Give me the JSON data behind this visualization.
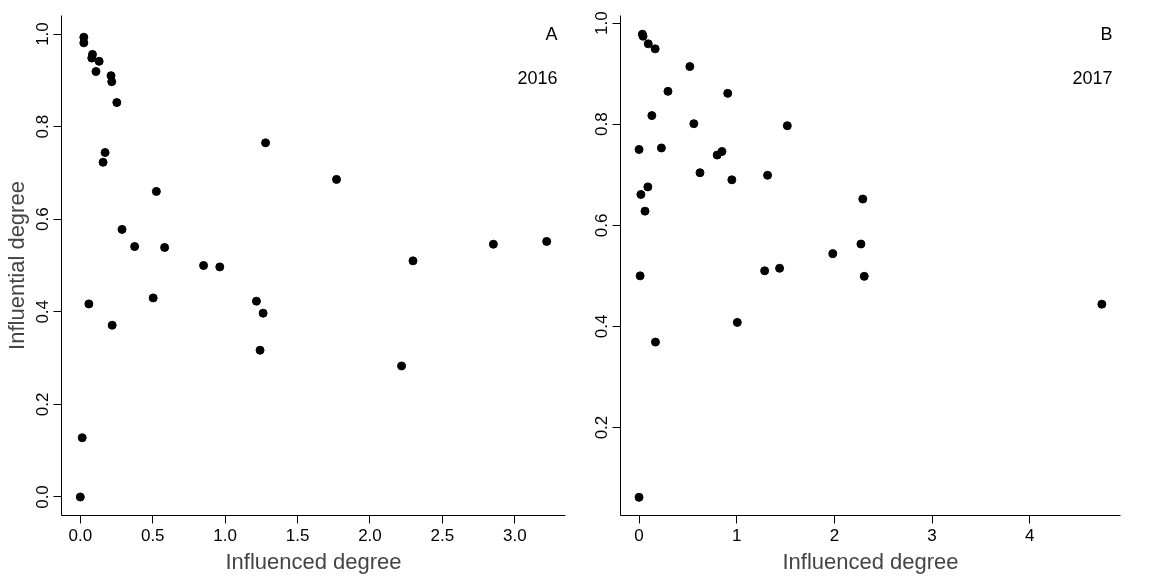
{
  "chart_data": [
    {
      "type": "scatter",
      "xlabel": "Influenced degree",
      "ylabel": "Influential degree",
      "annotations": [
        "A",
        "2016"
      ],
      "marker": "circle",
      "grid": false,
      "xlim": [
        -0.13,
        3.35
      ],
      "ylim": [
        -0.04,
        1.04
      ],
      "xticks": [
        {
          "value": 0,
          "label": "0.0"
        },
        {
          "value": 0.5,
          "label": "0.5"
        },
        {
          "value": 1,
          "label": "1.0"
        },
        {
          "value": 1.5,
          "label": "1.5"
        },
        {
          "value": 2,
          "label": "2.0"
        },
        {
          "value": 2.5,
          "label": "2.5"
        },
        {
          "value": 3,
          "label": "3.0"
        }
      ],
      "yticks": [
        {
          "value": 0,
          "label": "0.0"
        },
        {
          "value": 0.2,
          "label": "0.2"
        },
        {
          "value": 0.4,
          "label": "0.4"
        },
        {
          "value": 0.6,
          "label": "0.6"
        },
        {
          "value": 0.8,
          "label": "0.8"
        },
        {
          "value": 1,
          "label": "1.0"
        }
      ],
      "series": [
        {
          "color": "#000000",
          "x": [
            0.024,
            0.024,
            0.084,
            0.079,
            0.13,
            0.108,
            0.212,
            0.217,
            0.252,
            0.171,
            0.157,
            1.279,
            1.769,
            0.525,
            0.288,
            0.375,
            0.582,
            0.851,
            0.963,
            2.852,
            3.22,
            2.297,
            0.503,
            0.059,
            1.216,
            1.262,
            0.22,
            1.241,
            2.218,
            0.013,
            0.0
          ],
          "values": [
            0.993,
            0.981,
            0.956,
            0.948,
            0.941,
            0.919,
            0.91,
            0.897,
            0.852,
            0.744,
            0.723,
            0.765,
            0.686,
            0.66,
            0.578,
            0.541,
            0.539,
            0.5,
            0.497,
            0.546,
            0.552,
            0.51,
            0.43,
            0.417,
            0.423,
            0.397,
            0.371,
            0.317,
            0.283,
            0.128,
            0.0
          ]
        }
      ]
    },
    {
      "type": "scatter",
      "xlabel": "Influenced degree",
      "annotations": [
        "B",
        "2017"
      ],
      "marker": "circle",
      "grid": false,
      "xlim": [
        -0.19,
        4.93
      ],
      "ylim": [
        0.026,
        1.015
      ],
      "xticks": [
        0,
        1,
        2,
        3,
        4
      ],
      "yticks": [
        {
          "value": 0.2,
          "label": "0.2"
        },
        {
          "value": 0.4,
          "label": "0.4"
        },
        {
          "value": 0.6,
          "label": "0.6"
        },
        {
          "value": 0.8,
          "label": "0.8"
        },
        {
          "value": 1,
          "label": "1.0"
        }
      ],
      "series": [
        {
          "color": "#000000",
          "x": [
            0.034,
            0.041,
            0.094,
            0.165,
            0.52,
            0.296,
            0.908,
            0.131,
            0.561,
            1.518,
            0.0,
            0.229,
            0.849,
            0.8,
            0.624,
            0.95,
            1.316,
            0.09,
            0.019,
            0.061,
            2.291,
            2.272,
            1.984,
            1.439,
            1.286,
            2.306,
            0.011,
            1.006,
            0.168,
            4.739,
            0.0
          ],
          "values": [
            0.978,
            0.974,
            0.959,
            0.949,
            0.914,
            0.865,
            0.861,
            0.817,
            0.801,
            0.797,
            0.75,
            0.753,
            0.746,
            0.739,
            0.704,
            0.69,
            0.699,
            0.676,
            0.661,
            0.628,
            0.652,
            0.563,
            0.544,
            0.515,
            0.51,
            0.499,
            0.5,
            0.408,
            0.369,
            0.444,
            0.062
          ]
        }
      ]
    }
  ]
}
